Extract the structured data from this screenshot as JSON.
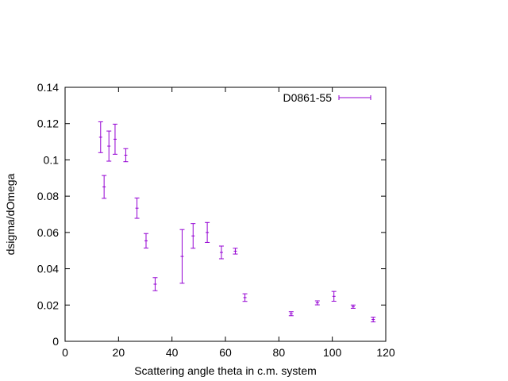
{
  "chart_data": {
    "type": "scatter",
    "title": "",
    "xlabel": "Scattering angle theta in c.m. system",
    "ylabel": "dsigma/dOmega",
    "xlim": [
      0,
      120
    ],
    "ylim": [
      0,
      0.14
    ],
    "x_ticks": [
      "0",
      "20",
      "40",
      "60",
      "80",
      "100",
      "120"
    ],
    "y_ticks": [
      "0",
      "0.02",
      "0.04",
      "0.06",
      "0.08",
      "0.1",
      "0.12",
      "0.14"
    ],
    "grid": false,
    "legend_position": "top-right",
    "color": "#9400d3",
    "series": [
      {
        "name": "D0861-55",
        "style": "errorbars",
        "points": [
          {
            "x": 13.3,
            "y": 0.1125,
            "err": 0.0085
          },
          {
            "x": 14.6,
            "y": 0.0851,
            "err": 0.0063
          },
          {
            "x": 16.4,
            "y": 0.1076,
            "err": 0.0083
          },
          {
            "x": 18.7,
            "y": 0.1114,
            "err": 0.0083
          },
          {
            "x": 22.7,
            "y": 0.1026,
            "err": 0.0036
          },
          {
            "x": 26.9,
            "y": 0.0734,
            "err": 0.0056
          },
          {
            "x": 30.3,
            "y": 0.0554,
            "err": 0.004
          },
          {
            "x": 33.7,
            "y": 0.0315,
            "err": 0.0036
          },
          {
            "x": 43.8,
            "y": 0.0468,
            "err": 0.0148
          },
          {
            "x": 47.9,
            "y": 0.0581,
            "err": 0.0068
          },
          {
            "x": 53.2,
            "y": 0.06,
            "err": 0.0055
          },
          {
            "x": 58.5,
            "y": 0.049,
            "err": 0.0035
          },
          {
            "x": 63.7,
            "y": 0.0497,
            "err": 0.0016
          },
          {
            "x": 67.3,
            "y": 0.0241,
            "err": 0.0021
          },
          {
            "x": 84.6,
            "y": 0.0152,
            "err": 0.0011
          },
          {
            "x": 94.4,
            "y": 0.0212,
            "err": 0.0011
          },
          {
            "x": 100.6,
            "y": 0.0248,
            "err": 0.0027
          },
          {
            "x": 107.8,
            "y": 0.0191,
            "err": 0.0009
          },
          {
            "x": 115.3,
            "y": 0.012,
            "err": 0.0013
          }
        ]
      }
    ]
  }
}
